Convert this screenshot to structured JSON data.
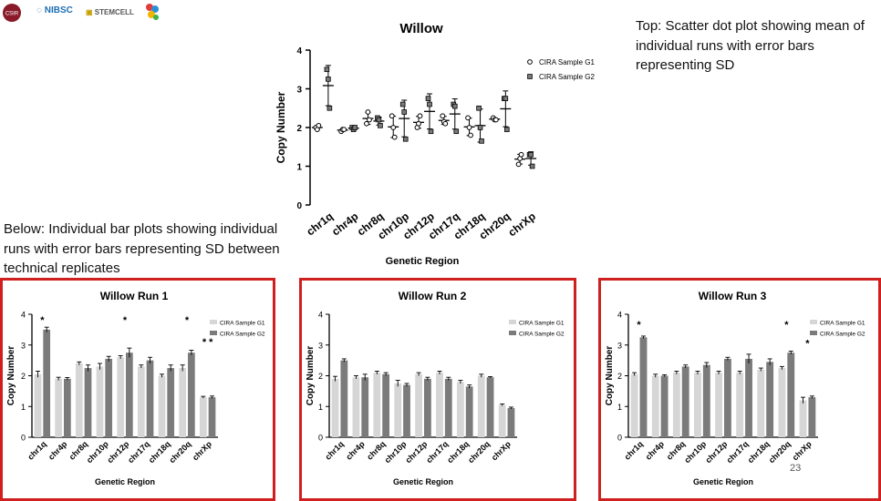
{
  "logos": {
    "left": "CSIR",
    "nibsc": "NIBSC",
    "stemcell": "STEMCELL"
  },
  "captions": {
    "top": "Top: Scatter dot plot showing mean of individual runs with error bars representing SD",
    "bottom": "Below: Individual bar plots showing individual runs with error bars representing SD between technical replicates"
  },
  "page_number": "23",
  "colors": {
    "g1": "#d6d6d6",
    "g2": "#7b7b7b",
    "frame": "#cf1f1f"
  },
  "chart_data": [
    {
      "id": "willow",
      "type": "scatter",
      "title": "Willow",
      "xlabel": "Genetic Region",
      "ylabel": "Copy Number",
      "ylim": [
        0,
        4
      ],
      "yticks": [
        0,
        1,
        2,
        3,
        4
      ],
      "categories": [
        "chr1q",
        "chr4p",
        "chr8q",
        "chr10p",
        "chr12p",
        "chr17q",
        "chr18q",
        "chr20q",
        "chrXp"
      ],
      "legend": [
        "CIRA Sample G1",
        "CIRA Sample G2"
      ],
      "series": [
        {
          "name": "CIRA Sample G1",
          "points": [
            [
              2.0,
              1.95,
              2.05
            ],
            [
              1.9,
              1.95,
              1.95
            ],
            [
              2.1,
              2.4,
              2.2
            ],
            [
              2.3,
              2.0,
              1.75
            ],
            [
              2.0,
              2.1,
              2.3
            ],
            [
              2.3,
              2.15,
              2.1
            ],
            [
              2.25,
              2.0,
              1.8
            ],
            [
              2.25,
              2.2,
              2.2
            ],
            [
              1.05,
              1.2,
              1.3
            ]
          ]
        },
        {
          "name": "CIRA Sample G2",
          "points": [
            [
              3.5,
              3.25,
              2.5
            ],
            [
              2.0,
              1.95,
              2.0
            ],
            [
              2.25,
              2.2,
              2.05
            ],
            [
              2.6,
              2.4,
              1.7
            ],
            [
              2.75,
              2.6,
              1.9
            ],
            [
              2.6,
              2.55,
              1.9
            ],
            [
              2.5,
              2.0,
              1.65
            ],
            [
              2.75,
              2.75,
              1.95
            ],
            [
              1.3,
              1.3,
              1.0
            ]
          ]
        }
      ]
    },
    {
      "id": "run1",
      "type": "bar",
      "title": "Willow Run 1",
      "xlabel": "Genetic Region",
      "ylabel": "Copy Number",
      "ylim": [
        0,
        4
      ],
      "yticks": [
        0,
        1,
        2,
        3,
        4
      ],
      "categories": [
        "chr1q",
        "chr4p",
        "chr8q",
        "chr10p",
        "chr12p",
        "chr17q",
        "chr18q",
        "chr20q",
        "chrXp"
      ],
      "legend": [
        "CIRA Sample G1",
        "CIRA Sample G2"
      ],
      "series": [
        {
          "name": "CIRA Sample G1",
          "values": [
            2.05,
            1.9,
            2.4,
            2.3,
            2.6,
            2.3,
            2.0,
            2.25,
            1.3
          ],
          "errors": [
            0.1,
            0.05,
            0.05,
            0.1,
            0.05,
            0.05,
            0.05,
            0.1,
            0.03
          ]
        },
        {
          "name": "CIRA Sample G2",
          "values": [
            3.5,
            1.9,
            2.25,
            2.55,
            2.75,
            2.5,
            2.25,
            2.75,
            1.3
          ],
          "errors": [
            0.08,
            0.04,
            0.1,
            0.08,
            0.15,
            0.1,
            0.1,
            0.08,
            0.04
          ]
        }
      ],
      "annotations": [
        {
          "text": "*",
          "cat": 0,
          "y": 3.7
        },
        {
          "text": "*",
          "cat": 4,
          "y": 3.7
        },
        {
          "text": "*",
          "cat": 7,
          "y": 3.7
        },
        {
          "text": "* *",
          "cat": 8,
          "y": 3.0
        }
      ]
    },
    {
      "id": "run2",
      "type": "bar",
      "title": "Willow Run 2",
      "xlabel": "Genetic Region",
      "ylabel": "Copy Number",
      "ylim": [
        0,
        4
      ],
      "yticks": [
        0,
        1,
        2,
        3,
        4
      ],
      "categories": [
        "chr1q",
        "chr4p",
        "chr8q",
        "chr10p",
        "chr12p",
        "chr17q",
        "chr18q",
        "chr20q",
        "chrXp"
      ],
      "legend": [
        "CIRA Sample G1",
        "CIRA Sample G2"
      ],
      "series": [
        {
          "name": "CIRA Sample G1",
          "values": [
            1.9,
            1.95,
            2.1,
            1.75,
            2.05,
            2.1,
            1.8,
            2.0,
            1.05
          ],
          "errors": [
            0.08,
            0.05,
            0.05,
            0.1,
            0.05,
            0.05,
            0.05,
            0.05,
            0.03
          ]
        },
        {
          "name": "CIRA Sample G2",
          "values": [
            2.5,
            1.95,
            2.05,
            1.7,
            1.9,
            1.9,
            1.65,
            1.95,
            0.95
          ],
          "errors": [
            0.05,
            0.1,
            0.05,
            0.05,
            0.05,
            0.05,
            0.05,
            0.02,
            0.03
          ]
        }
      ],
      "annotations": []
    },
    {
      "id": "run3",
      "type": "bar",
      "title": "Willow Run 3",
      "xlabel": "Genetic Region",
      "ylabel": "Copy Number",
      "ylim": [
        0,
        4
      ],
      "yticks": [
        0,
        1,
        2,
        3,
        4
      ],
      "categories": [
        "chr1q",
        "chr4p",
        "chr8q",
        "chr10p",
        "chr12p",
        "chr17q",
        "chr18q",
        "chr20q",
        "chrXp"
      ],
      "legend": [
        "CIRA Sample G1",
        "CIRA Sample G2"
      ],
      "series": [
        {
          "name": "CIRA Sample G1",
          "values": [
            2.05,
            2.0,
            2.1,
            2.1,
            2.1,
            2.1,
            2.2,
            2.25,
            1.2
          ],
          "errors": [
            0.05,
            0.05,
            0.05,
            0.05,
            0.05,
            0.05,
            0.05,
            0.05,
            0.1
          ]
        },
        {
          "name": "CIRA Sample G2",
          "values": [
            3.25,
            2.0,
            2.3,
            2.35,
            2.55,
            2.55,
            2.45,
            2.75,
            1.3
          ],
          "errors": [
            0.04,
            0.03,
            0.05,
            0.08,
            0.05,
            0.15,
            0.1,
            0.05,
            0.04
          ]
        }
      ],
      "annotations": [
        {
          "text": "*",
          "cat": 0,
          "y": 3.55
        },
        {
          "text": "*",
          "cat": 7,
          "y": 3.55
        },
        {
          "text": "*",
          "cat": 8,
          "y": 2.95
        }
      ]
    }
  ]
}
